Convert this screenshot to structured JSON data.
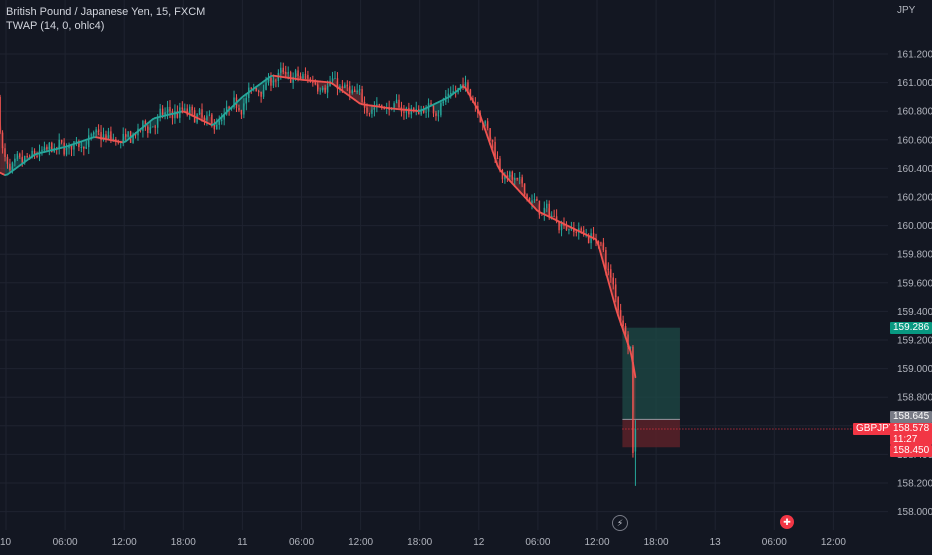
{
  "legend": {
    "title": "British Pound / Japanese Yen, 15, FXCM",
    "indicator": "TWAP (14, 0, ohlc4)"
  },
  "axis": {
    "currency": "JPY",
    "y_ticks": [
      "161.200",
      "161.000",
      "160.800",
      "160.600",
      "160.400",
      "160.200",
      "160.000",
      "159.800",
      "159.600",
      "159.400",
      "159.200",
      "159.000",
      "158.800",
      "158.600",
      "158.400",
      "158.200",
      "158.000"
    ],
    "x_ticks": [
      "10",
      "06:00",
      "12:00",
      "18:00",
      "11",
      "06:00",
      "12:00",
      "18:00",
      "12",
      "06:00",
      "12:00",
      "18:00",
      "13",
      "06:00",
      "12:00"
    ]
  },
  "tags": {
    "target_price": "159.286",
    "entry_price": "158.645",
    "symbol": "GBPJPY",
    "last_price": "158.578",
    "countdown": "11:27",
    "stop_price": "158.450"
  },
  "colors": {
    "background": "#131722",
    "up": "#26a69a",
    "down": "#ef5350",
    "target_zone": "#1e4a45",
    "stop_zone": "#5a2128",
    "grid": "#1f2330"
  },
  "icons": [
    "lightning-icon",
    "flag-icon"
  ],
  "chart_data": {
    "type": "candlestick",
    "title": "British Pound / Japanese Yen, 15, FXCM",
    "ylabel": "JPY",
    "ylim": [
      157.95,
      161.35
    ],
    "x_range_hours": [
      -6,
      72
    ],
    "series": [
      {
        "name": "TWAP (14, 0, ohlc4)",
        "type": "line",
        "points": [
          [
            -6,
            160.8
          ],
          [
            -3,
            160.45
          ],
          [
            0,
            160.35
          ],
          [
            3,
            160.5
          ],
          [
            6,
            160.55
          ],
          [
            9,
            160.62
          ],
          [
            12,
            160.58
          ],
          [
            15,
            160.75
          ],
          [
            18,
            160.8
          ],
          [
            21,
            160.7
          ],
          [
            24,
            160.9
          ],
          [
            27,
            161.05
          ],
          [
            30,
            161.02
          ],
          [
            33,
            161.0
          ],
          [
            36,
            160.85
          ],
          [
            39,
            160.82
          ],
          [
            42,
            160.8
          ],
          [
            45,
            160.9
          ],
          [
            46.5,
            160.98
          ],
          [
            48,
            160.8
          ],
          [
            50,
            160.4
          ],
          [
            52,
            160.25
          ],
          [
            54,
            160.1
          ],
          [
            57,
            160.0
          ],
          [
            60,
            159.9
          ],
          [
            62,
            159.4
          ],
          [
            63.5,
            159.1
          ],
          [
            64,
            158.9
          ]
        ]
      }
    ],
    "annotations": {
      "position": {
        "entry": 158.645,
        "target": 159.286,
        "stop": 158.45,
        "start_hour": 64,
        "end_hour": 67
      },
      "last_price": 158.578
    }
  }
}
